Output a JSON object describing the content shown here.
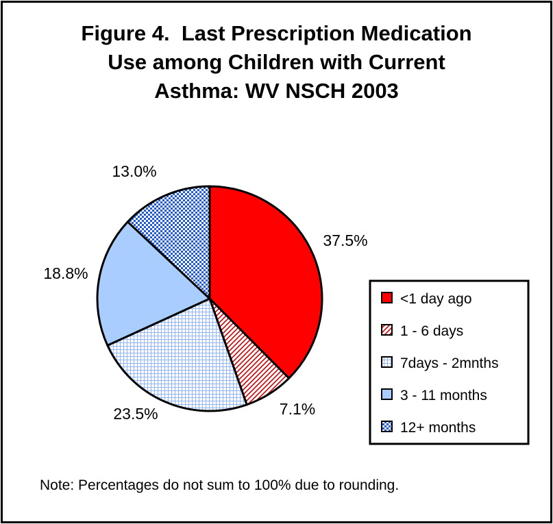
{
  "title_lines": [
    "Figure 4.  Last Prescription Medication",
    "Use among Children with Current",
    "Asthma: WV NSCH 2003"
  ],
  "note": "Note: Percentages do not sum to 100% due to rounding.",
  "chart_data": {
    "type": "pie",
    "title": "Figure 4.  Last Prescription Medication Use among Children with Current Asthma: WV NSCH 2003",
    "legend_position": "right",
    "slices": [
      {
        "name": "<1 day ago",
        "value": 37.5,
        "label": "37.5%",
        "color": "#ff0000",
        "pattern": "solid"
      },
      {
        "name": "1 - 6 days",
        "value": 7.1,
        "label": "7.1%",
        "color": "#cc0000",
        "pattern": "diagonal-hatch"
      },
      {
        "name": "7days - 2mnths",
        "value": 23.5,
        "label": "23.5%",
        "color": "#8fb4ff",
        "pattern": "grid"
      },
      {
        "name": "3 - 11 months",
        "value": 18.8,
        "label": "18.8%",
        "color": "#a9cdff",
        "pattern": "solid"
      },
      {
        "name": "12+ months",
        "value": 13.0,
        "label": "13.0%",
        "color": "#1e5adc",
        "pattern": "checker"
      }
    ]
  }
}
